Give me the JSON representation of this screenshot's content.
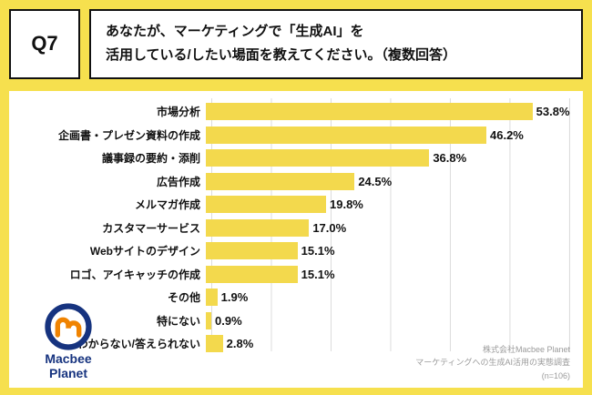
{
  "header": {
    "q_label": "Q7",
    "question_line1": "あなたが、マーケティングで「生成AI」を",
    "question_line2": "活用している/したい場面を教えてください。（複数回答）"
  },
  "chart_data": {
    "type": "bar",
    "orientation": "horizontal",
    "title": "あなたが、マーケティングで「生成AI」を活用している/したい場面を教えてください。（複数回答）",
    "categories": [
      "市場分析",
      "企画書・プレゼン資料の作成",
      "議事録の要約・添削",
      "広告作成",
      "メルマガ作成",
      "カスタマーサービス",
      "Webサイトのデザイン",
      "ロゴ、アイキャッチの作成",
      "その他",
      "特にない",
      "わからない/答えられない"
    ],
    "values": [
      53.8,
      46.2,
      36.8,
      24.5,
      19.8,
      17.0,
      15.1,
      15.1,
      1.9,
      0.9,
      2.8
    ],
    "value_labels": [
      "53.8%",
      "46.2%",
      "36.8%",
      "24.5%",
      "19.8%",
      "17.0%",
      "15.1%",
      "15.1%",
      "1.9%",
      "0.9%",
      "2.8%"
    ],
    "xlim": [
      0,
      60
    ],
    "grid": true,
    "bar_color": "#F3D94D",
    "background_color": "#FFFFFF",
    "page_background": "#F6E04E"
  },
  "footer": {
    "source_line1": "株式会社Macbee Planet",
    "source_line2": "マーケティングへの生成AI活用の実態調査",
    "source_line3": "(n=106)"
  },
  "logo": {
    "line1": "Macbee",
    "line2": "Planet"
  }
}
